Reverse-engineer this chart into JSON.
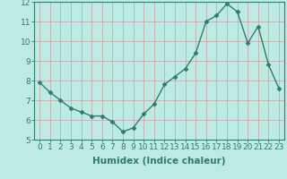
{
  "x": [
    0,
    1,
    2,
    3,
    4,
    5,
    6,
    7,
    8,
    9,
    10,
    11,
    12,
    13,
    14,
    15,
    16,
    17,
    18,
    19,
    20,
    21,
    22,
    23
  ],
  "y": [
    7.9,
    7.4,
    7.0,
    6.6,
    6.4,
    6.2,
    6.2,
    5.9,
    5.4,
    5.6,
    6.3,
    6.8,
    7.8,
    8.2,
    8.6,
    9.4,
    11.0,
    11.3,
    11.9,
    11.5,
    9.9,
    10.75,
    8.8,
    7.6
  ],
  "xlabel": "Humidex (Indice chaleur)",
  "ylim": [
    5,
    12
  ],
  "xlim": [
    -0.5,
    23.5
  ],
  "yticks": [
    5,
    6,
    7,
    8,
    9,
    10,
    11,
    12
  ],
  "xticks": [
    0,
    1,
    2,
    3,
    4,
    5,
    6,
    7,
    8,
    9,
    10,
    11,
    12,
    13,
    14,
    15,
    16,
    17,
    18,
    19,
    20,
    21,
    22,
    23
  ],
  "line_color": "#2e7d6e",
  "marker": "D",
  "marker_size": 2.5,
  "bg_color": "#beeae4",
  "grid_color": "#c8a0a0",
  "line_width": 1.0,
  "xlabel_fontsize": 7.5,
  "tick_fontsize": 6.5,
  "fig_width": 3.2,
  "fig_height": 2.0,
  "dpi": 100
}
